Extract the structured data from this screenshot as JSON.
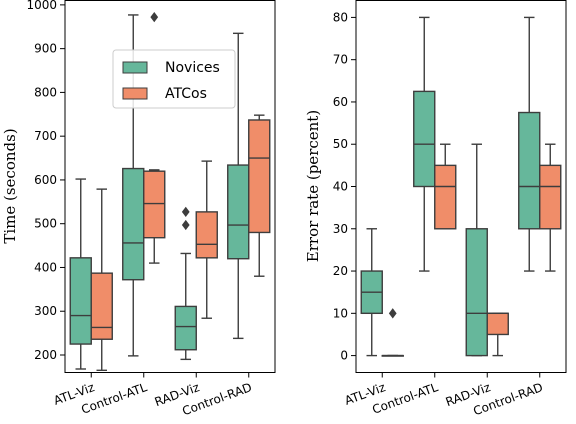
{
  "palette": {
    "novices": "#66b79b",
    "atcos": "#f08d69",
    "line": "#3d3d3d"
  },
  "chart_data": [
    {
      "type": "box",
      "categories": [
        "ATL-Viz",
        "Control-ATL",
        "RAD-Viz",
        "Control-RAD"
      ],
      "ylabel": "Time (seconds)",
      "xlabel": "",
      "ylim": [
        160,
        1010
      ],
      "yticks": [
        "200",
        "300",
        "400",
        "500",
        "600",
        "700",
        "800",
        "900",
        "1000"
      ],
      "legend": {
        "position": "upper-middle",
        "entries": [
          "Novices",
          "ATCos"
        ]
      },
      "series": [
        {
          "name": "Novices",
          "boxes": [
            {
              "min": 168,
              "q1": 225,
              "median": 290,
              "q3": 422,
              "max": 602,
              "outliers": []
            },
            {
              "min": 198,
              "q1": 372,
              "median": 456,
              "q3": 626,
              "max": 977,
              "outliers": []
            },
            {
              "min": 190,
              "q1": 212,
              "median": 265,
              "q3": 311,
              "max": 432,
              "outliers": [
                497,
                527
              ]
            },
            {
              "min": 238,
              "q1": 420,
              "median": 497,
              "q3": 634,
              "max": 935,
              "outliers": []
            }
          ]
        },
        {
          "name": "ATCos",
          "boxes": [
            {
              "min": 165,
              "q1": 236,
              "median": 263,
              "q3": 387,
              "max": 579,
              "outliers": []
            },
            {
              "min": 410,
              "q1": 468,
              "median": 546,
              "q3": 620,
              "max": 623,
              "outliers": [
                972
              ]
            },
            {
              "min": 284,
              "q1": 422,
              "median": 453,
              "q3": 527,
              "max": 643,
              "outliers": []
            },
            {
              "min": 380,
              "q1": 480,
              "median": 650,
              "q3": 737,
              "max": 748,
              "outliers": []
            }
          ]
        }
      ]
    },
    {
      "type": "box",
      "categories": [
        "ATL-Viz",
        "Control-ATL",
        "RAD-Viz",
        "Control-RAD"
      ],
      "ylabel": "Error rate (percent)",
      "xlabel": "",
      "ylim": [
        -4,
        84
      ],
      "yticks": [
        "0",
        "10",
        "20",
        "30",
        "40",
        "50",
        "60",
        "70",
        "80"
      ],
      "series": [
        {
          "name": "Novices",
          "boxes": [
            {
              "min": 0,
              "q1": 10,
              "median": 15,
              "q3": 20,
              "max": 30,
              "outliers": []
            },
            {
              "min": 20,
              "q1": 40,
              "median": 50,
              "q3": 62.5,
              "max": 80,
              "outliers": []
            },
            {
              "min": 0,
              "q1": 0,
              "median": 10,
              "q3": 30,
              "max": 50,
              "outliers": []
            },
            {
              "min": 20,
              "q1": 30,
              "median": 40,
              "q3": 57.5,
              "max": 80,
              "outliers": []
            }
          ]
        },
        {
          "name": "ATCos",
          "boxes": [
            {
              "min": 0,
              "q1": 0,
              "median": 0,
              "q3": 0,
              "max": 0,
              "outliers": [
                10
              ]
            },
            {
              "min": 30,
              "q1": 30,
              "median": 40,
              "q3": 45,
              "max": 50,
              "outliers": []
            },
            {
              "min": 0,
              "q1": 5,
              "median": 10,
              "q3": 10,
              "max": 10,
              "outliers": []
            },
            {
              "min": 20,
              "q1": 30,
              "median": 40,
              "q3": 45,
              "max": 50,
              "outliers": []
            }
          ]
        }
      ]
    }
  ]
}
